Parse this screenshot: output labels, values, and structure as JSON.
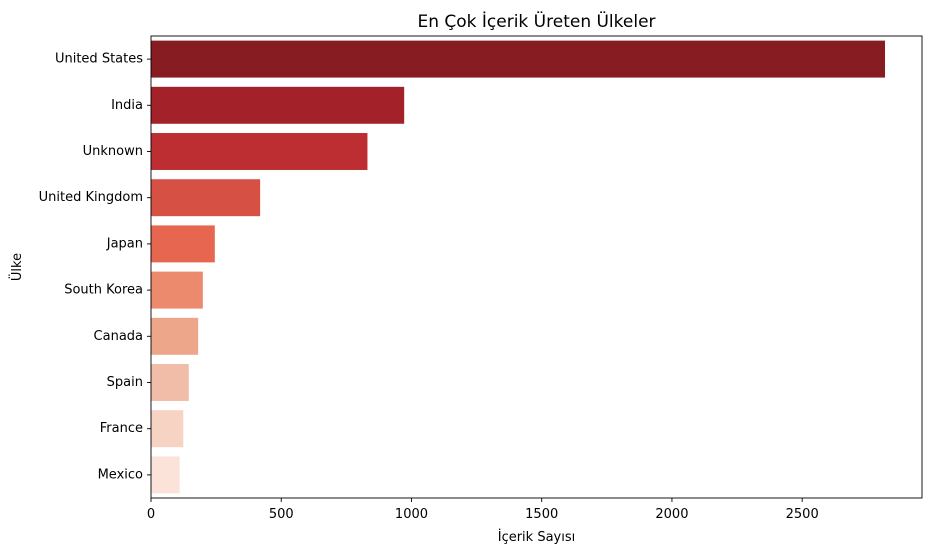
{
  "chart_data": {
    "type": "bar",
    "orientation": "horizontal",
    "title": "En Çok İçerik Üreten Ülkeler",
    "xlabel": "İçerik Sayısı",
    "ylabel": "Ülke",
    "xlim": [
      0,
      2960
    ],
    "xticks": [
      0,
      500,
      1000,
      1500,
      2000,
      2500
    ],
    "grid": false,
    "categories": [
      "United States",
      "India",
      "Unknown",
      "United Kingdom",
      "Japan",
      "South Korea",
      "Canada",
      "Spain",
      "France",
      "Mexico"
    ],
    "values": [
      2818,
      972,
      831,
      419,
      245,
      199,
      181,
      145,
      124,
      110
    ],
    "colors": [
      "#871c22",
      "#a32229",
      "#bd2e33",
      "#d75044",
      "#e7664f",
      "#ec8a6d",
      "#eea68a",
      "#f2bda8",
      "#f6d3c2",
      "#fbe3d9"
    ]
  }
}
